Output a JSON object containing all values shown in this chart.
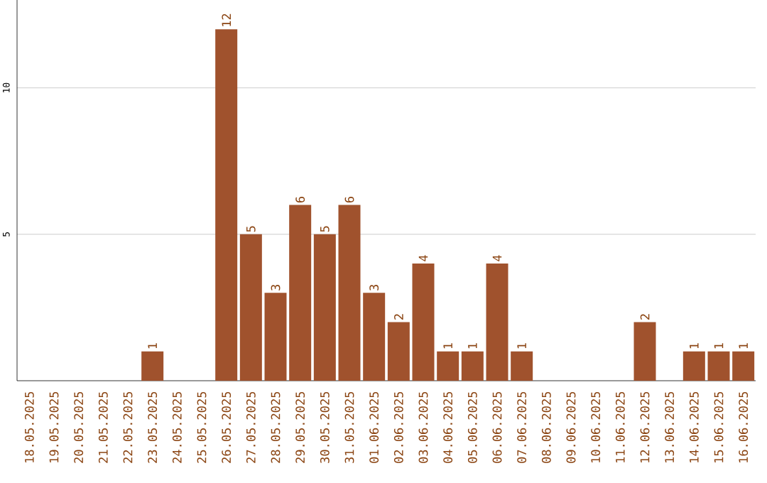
{
  "chart_data": {
    "type": "bar",
    "color": "#a0522d",
    "categories": [
      "18.05.2025",
      "19.05.2025",
      "20.05.2025",
      "21.05.2025",
      "22.05.2025",
      "23.05.2025",
      "24.05.2025",
      "25.05.2025",
      "26.05.2025",
      "27.05.2025",
      "28.05.2025",
      "29.05.2025",
      "30.05.2025",
      "31.05.2025",
      "01.06.2025",
      "02.06.2025",
      "03.06.2025",
      "04.06.2025",
      "05.06.2025",
      "06.06.2025",
      "07.06.2025",
      "08.06.2025",
      "09.06.2025",
      "10.06.2025",
      "11.06.2025",
      "12.06.2025",
      "13.06.2025",
      "14.06.2025",
      "15.06.2025",
      "16.06.2025"
    ],
    "values": [
      0,
      0,
      0,
      0,
      0,
      1,
      0,
      0,
      12,
      5,
      3,
      6,
      5,
      6,
      3,
      2,
      4,
      1,
      1,
      4,
      1,
      0,
      0,
      0,
      0,
      2,
      0,
      1,
      1,
      1
    ],
    "value_labels": [
      null,
      null,
      null,
      null,
      null,
      "1",
      null,
      null,
      "12",
      "5",
      "3",
      "6",
      "5",
      "6",
      "3",
      "2",
      "4",
      "1",
      "1",
      "4",
      "1",
      null,
      null,
      null,
      null,
      "2",
      null,
      "1",
      "1",
      "1"
    ],
    "ylim": [
      0,
      13
    ],
    "yticks": [
      5,
      10
    ],
    "grid": "y"
  }
}
